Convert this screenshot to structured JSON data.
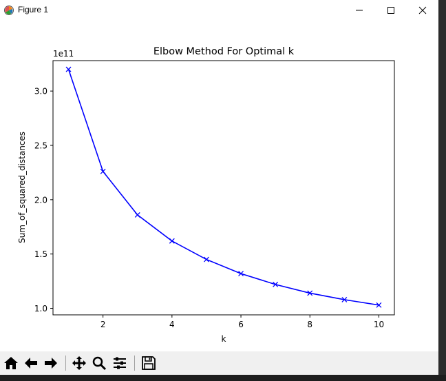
{
  "window": {
    "title": "Figure 1",
    "app_icon": "matplotlib-icon",
    "controls": [
      "minimize-icon",
      "maximize-icon",
      "close-icon"
    ]
  },
  "toolbar": {
    "buttons": [
      {
        "icon": "home-icon",
        "label": "Home"
      },
      {
        "icon": "back-arrow-icon",
        "label": "Back"
      },
      {
        "icon": "forward-arrow-icon",
        "label": "Forward"
      },
      {
        "icon": "pan-icon",
        "label": "Pan"
      },
      {
        "icon": "zoom-icon",
        "label": "Zoom"
      },
      {
        "icon": "subplots-icon",
        "label": "Configure subplots"
      },
      {
        "icon": "save-icon",
        "label": "Save"
      }
    ]
  },
  "chart_data": {
    "type": "line",
    "title": "Elbow Method For Optimal k",
    "xlabel": "k",
    "ylabel": "Sum_of_squared_distances",
    "offset_text": "1e11",
    "x": [
      1,
      2,
      3,
      4,
      5,
      6,
      7,
      8,
      9,
      10
    ],
    "series": [
      {
        "values": [
          3.2,
          2.26,
          1.86,
          1.62,
          1.45,
          1.32,
          1.22,
          1.14,
          1.08,
          1.03
        ],
        "color": "#0000ff",
        "marker": "x"
      }
    ],
    "x_ticks": [
      2,
      4,
      6,
      8,
      10
    ],
    "y_ticks": [
      1.0,
      1.5,
      2.0,
      2.5,
      3.0
    ],
    "y_tick_labels": [
      "1.0",
      "1.5",
      "2.0",
      "2.5",
      "3.0"
    ],
    "xlim": [
      0.55,
      10.45
    ],
    "ylim": [
      0.94,
      3.28
    ],
    "grid": false,
    "legend": "none"
  }
}
